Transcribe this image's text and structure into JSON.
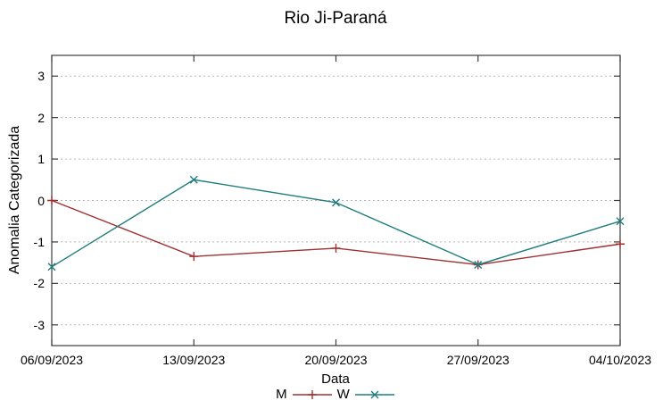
{
  "chart_data": {
    "type": "line",
    "title": "Rio Ji-Paraná",
    "xlabel": "Data",
    "ylabel": "Anomalia Categorizada",
    "categories": [
      "06/09/2023",
      "13/09/2023",
      "20/09/2023",
      "27/09/2023",
      "04/10/2023"
    ],
    "series": [
      {
        "name": "M",
        "color": "#a03030",
        "marker": "plus",
        "values": [
          0.0,
          -1.35,
          -1.15,
          -1.55,
          -1.05
        ]
      },
      {
        "name": "W",
        "color": "#1f7d7d",
        "marker": "cross",
        "values": [
          -1.6,
          0.5,
          -0.05,
          -1.55,
          -0.5
        ]
      }
    ],
    "ylim": [
      -3.5,
      3.5
    ],
    "yticks": [
      3,
      2,
      1,
      0,
      -1,
      -2,
      -3
    ],
    "grid": "horizontal-dotted",
    "legend_position": "bottom-center",
    "axis_color": "#3c3c3c",
    "grid_color": "#b5b5b5",
    "text_color": "#000000"
  }
}
